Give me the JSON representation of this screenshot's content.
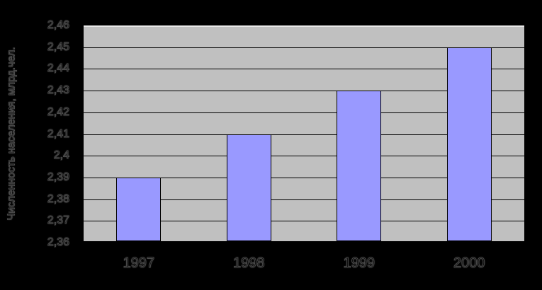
{
  "chart_data": {
    "type": "bar",
    "title": "",
    "xlabel": "",
    "ylabel": "Численность населения, млрд.чел.",
    "categories": [
      "1997",
      "1998",
      "1999",
      "2000"
    ],
    "values": [
      2.39,
      2.41,
      2.43,
      2.45
    ],
    "ylim": [
      2.36,
      2.46
    ],
    "ytick_step": 0.01,
    "ytick_labels": [
      "2,36",
      "2,37",
      "2,38",
      "2,39",
      "2,4",
      "2,41",
      "2,42",
      "2,43",
      "2,44",
      "2,45",
      "2,46"
    ],
    "grid": true,
    "legend_visible": false,
    "colors": {
      "page_bg": "#000000",
      "plot_bg": "#C0C0C0",
      "bar_fill": "#9999FF",
      "bar_border": "#000000",
      "gridline": "#000000",
      "plot_top_edge": "#E8E8E8",
      "text": "#000000"
    }
  }
}
